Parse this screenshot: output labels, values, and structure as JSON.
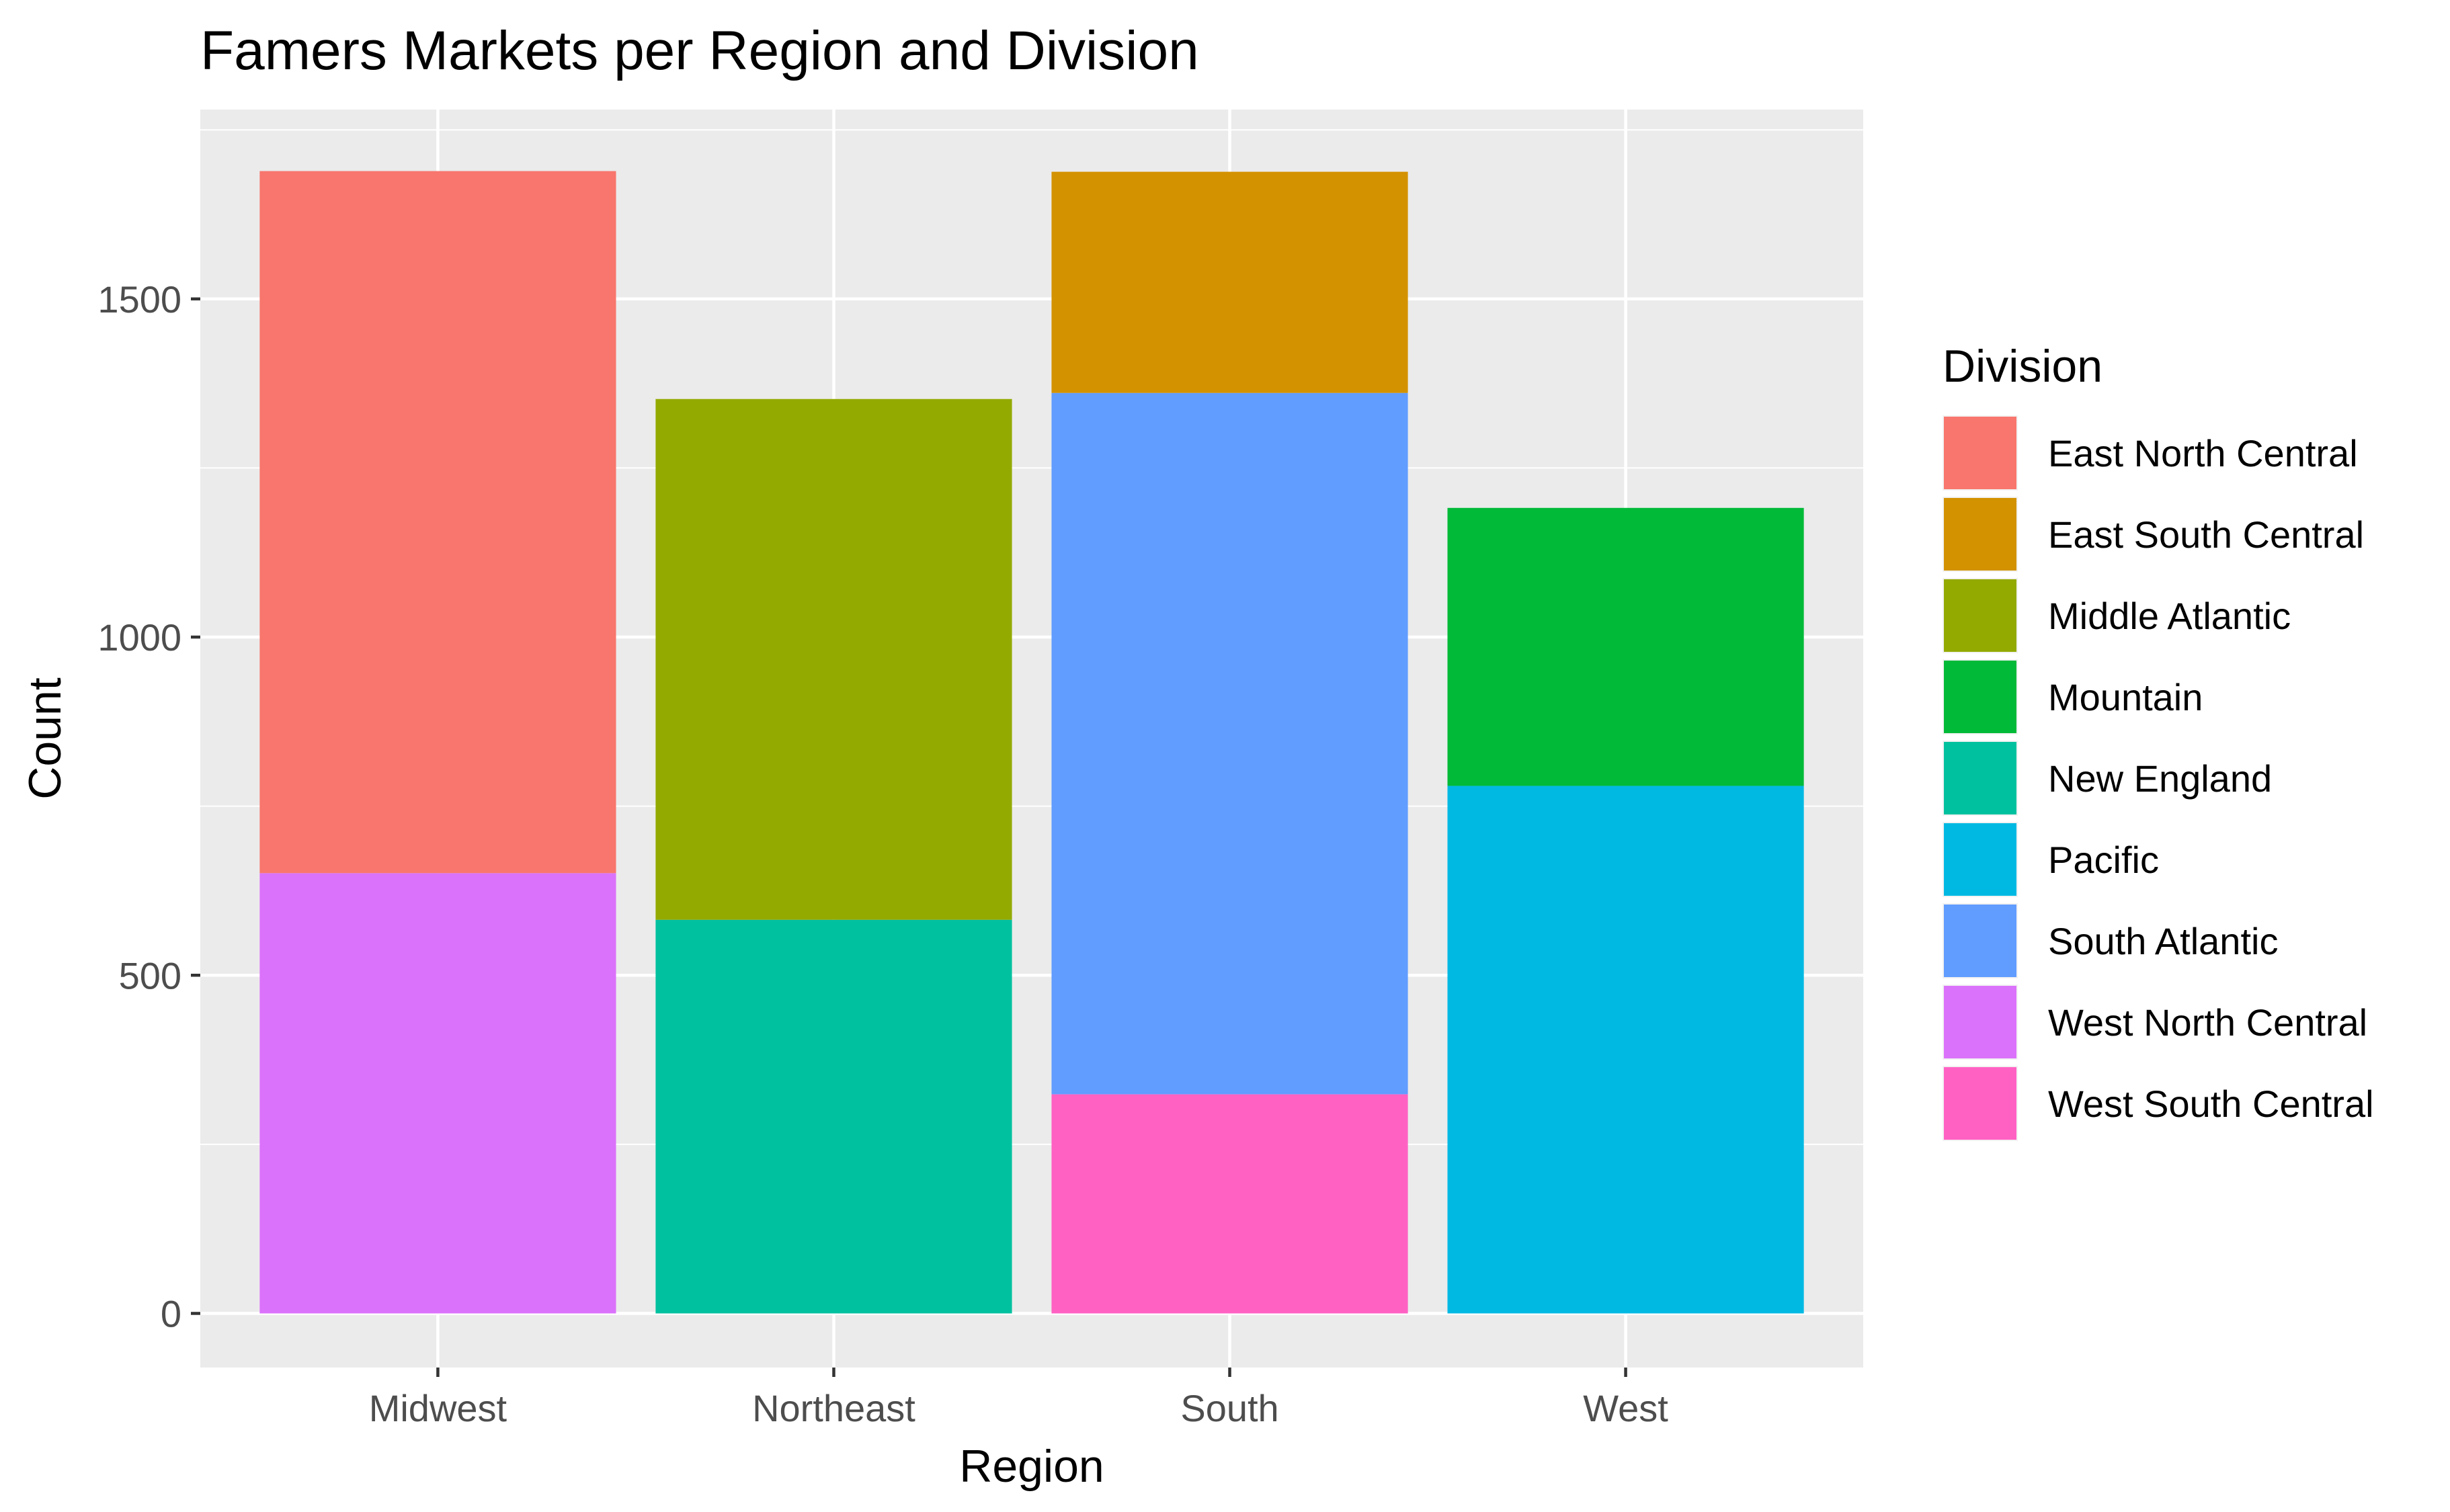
{
  "chart_data": {
    "type": "bar",
    "stacked": true,
    "title": "Famers Markets per Region and Division",
    "xlabel": "Region",
    "ylabel": "Count",
    "categories": [
      "Midwest",
      "Northeast",
      "South",
      "West"
    ],
    "ylim": [
      -80,
      1780
    ],
    "yticks": [
      0,
      500,
      1000,
      1500
    ],
    "grid": true,
    "legend": {
      "title": "Division",
      "position": "right",
      "entries": [
        {
          "name": "East North Central",
          "color": "#F8766D"
        },
        {
          "name": "East South Central",
          "color": "#D39200"
        },
        {
          "name": "Middle Atlantic",
          "color": "#93AA00"
        },
        {
          "name": "Mountain",
          "color": "#00BA38"
        },
        {
          "name": "New England",
          "color": "#00C19F"
        },
        {
          "name": "Pacific",
          "color": "#00B9E3"
        },
        {
          "name": "South Atlantic",
          "color": "#619CFF"
        },
        {
          "name": "West North Central",
          "color": "#DB72FB"
        },
        {
          "name": "West South Central",
          "color": "#FF61C3"
        }
      ]
    },
    "series": [
      {
        "name": "East North Central",
        "values": [
          1038,
          0,
          0,
          0
        ]
      },
      {
        "name": "East South Central",
        "values": [
          0,
          0,
          327,
          0
        ]
      },
      {
        "name": "Middle Atlantic",
        "values": [
          0,
          770,
          0,
          0
        ]
      },
      {
        "name": "Mountain",
        "values": [
          0,
          0,
          0,
          411
        ]
      },
      {
        "name": "New England",
        "values": [
          0,
          582,
          0,
          0
        ]
      },
      {
        "name": "Pacific",
        "values": [
          0,
          0,
          0,
          780
        ]
      },
      {
        "name": "South Atlantic",
        "values": [
          0,
          0,
          1037,
          0
        ]
      },
      {
        "name": "West North Central",
        "values": [
          651,
          0,
          0,
          0
        ]
      },
      {
        "name": "West South Central",
        "values": [
          0,
          0,
          324,
          0
        ]
      }
    ],
    "stack_order": {
      "Midwest": [
        "West North Central",
        "East North Central"
      ],
      "Northeast": [
        "New England",
        "Middle Atlantic"
      ],
      "South": [
        "West South Central",
        "South Atlantic",
        "East South Central"
      ],
      "West": [
        "Pacific",
        "Mountain"
      ]
    }
  }
}
